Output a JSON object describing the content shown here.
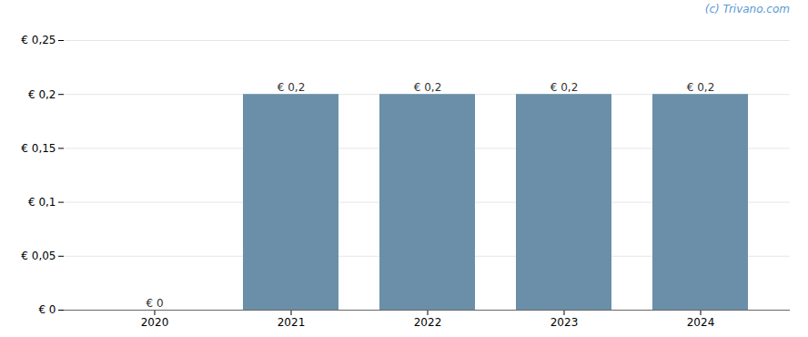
{
  "chart_data": {
    "type": "bar",
    "categories": [
      "2020",
      "2021",
      "2022",
      "2023",
      "2024"
    ],
    "values": [
      0.0,
      0.2,
      0.2,
      0.2,
      0.2
    ],
    "value_labels": [
      "€ 0",
      "€ 0,2",
      "€ 0,2",
      "€ 0,2",
      "€ 0,2"
    ],
    "data_labels": true,
    "color": "#6b8fa8",
    "ylim": [
      0,
      0.25
    ],
    "yticks": [
      {
        "value": 0,
        "label": "€ 0"
      },
      {
        "value": 0.05,
        "label": "€ 0,05"
      },
      {
        "value": 0.1,
        "label": "€ 0,1"
      },
      {
        "value": 0.15,
        "label": "€ 0,15"
      },
      {
        "value": 0.2,
        "label": "€ 0,2"
      },
      {
        "value": 0.25,
        "label": "€ 0,25"
      }
    ],
    "grid": true,
    "annotations": [
      "(c) Trivano.com"
    ]
  }
}
